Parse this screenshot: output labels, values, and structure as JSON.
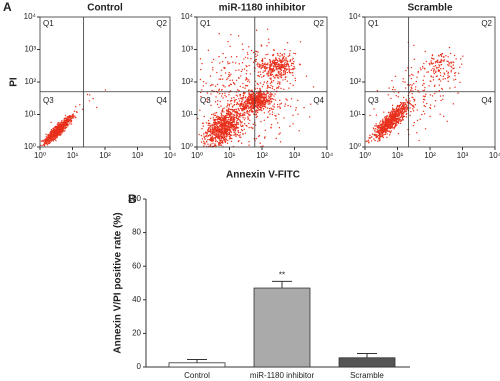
{
  "panel_labels": [
    "A",
    "B"
  ],
  "chart_data": [
    {
      "type": "scatter",
      "title": "Control",
      "y_label": "PI",
      "log_scale": true,
      "xlim": [
        1,
        10000
      ],
      "ylim": [
        1,
        10000
      ],
      "xticks": [
        {
          "value": 1,
          "label": "10⁰"
        },
        {
          "value": 10,
          "label": "10¹"
        },
        {
          "value": 100,
          "label": "10²"
        },
        {
          "value": 1000,
          "label": "10³"
        },
        {
          "value": 10000,
          "label": "10⁴"
        }
      ],
      "yticks": [
        {
          "value": 1,
          "label": "10⁰"
        },
        {
          "value": 10,
          "label": "10¹"
        },
        {
          "value": 100,
          "label": "10²"
        },
        {
          "value": 1000,
          "label": "10³"
        },
        {
          "value": 10000,
          "label": "10⁴"
        }
      ],
      "gate_x": 22,
      "gate_y": 50,
      "quadrant_labels": [
        "Q1",
        "Q2",
        "Q3",
        "Q4"
      ],
      "color": "#e8301c"
    },
    {
      "type": "scatter",
      "title": "miR-1180 inhibitor",
      "x_label": "Annexin V-FITC",
      "log_scale": true,
      "xlim": [
        1,
        10000
      ],
      "ylim": [
        1,
        10000
      ],
      "xticks": [
        {
          "value": 1,
          "label": "10⁰"
        },
        {
          "value": 10,
          "label": "10¹"
        },
        {
          "value": 100,
          "label": "10²"
        },
        {
          "value": 1000,
          "label": "10³"
        },
        {
          "value": 10000,
          "label": "10⁴"
        }
      ],
      "yticks": [
        {
          "value": 1,
          "label": "10⁰"
        },
        {
          "value": 10,
          "label": "10¹"
        },
        {
          "value": 100,
          "label": "10²"
        },
        {
          "value": 1000,
          "label": "10³"
        },
        {
          "value": 10000,
          "label": "10⁴"
        }
      ],
      "gate_x": 60,
      "gate_y": 50,
      "quadrant_labels": [
        "Q1",
        "Q2",
        "Q3",
        "Q4"
      ],
      "color": "#e8301c"
    },
    {
      "type": "scatter",
      "title": "Scramble",
      "log_scale": true,
      "xlim": [
        1,
        10000
      ],
      "ylim": [
        1,
        10000
      ],
      "xticks": [
        {
          "value": 1,
          "label": "10⁰"
        },
        {
          "value": 10,
          "label": "10¹"
        },
        {
          "value": 100,
          "label": "10²"
        },
        {
          "value": 1000,
          "label": "10³"
        },
        {
          "value": 10000,
          "label": "10⁴"
        }
      ],
      "yticks": [
        {
          "value": 1,
          "label": "10⁰"
        },
        {
          "value": 10,
          "label": "10¹"
        },
        {
          "value": 100,
          "label": "10²"
        },
        {
          "value": 1000,
          "label": "10³"
        },
        {
          "value": 10000,
          "label": "10⁴"
        }
      ],
      "gate_x": 22,
      "gate_y": 50,
      "quadrant_labels": [
        "Q1",
        "Q2",
        "Q3",
        "Q4"
      ],
      "color": "#e8301c"
    },
    {
      "type": "bar",
      "y_label": "Annexin V/PI positive rate (%)",
      "categories": [
        "Control",
        "miR-1180 inhibitor",
        "Scramble"
      ],
      "values": [
        2.5,
        47,
        5.5
      ],
      "errors": [
        2,
        4,
        2.5
      ],
      "colors": [
        "#ffffff",
        "#aaaaaa",
        "#555555"
      ],
      "significance_labels": [
        null,
        "**",
        null
      ],
      "ylim": [
        0,
        100
      ],
      "yticks": [
        0,
        20,
        40,
        60,
        80,
        100
      ]
    }
  ]
}
